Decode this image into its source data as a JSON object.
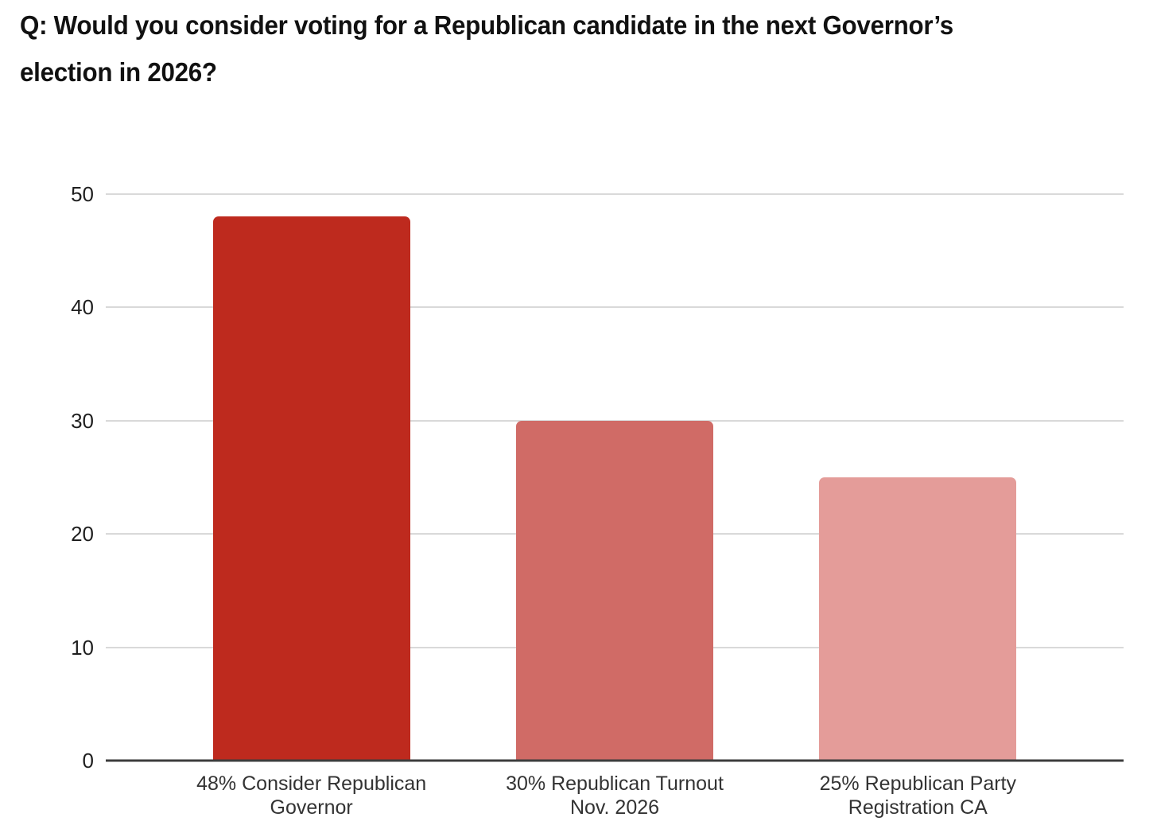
{
  "title": {
    "lines": [
      "Q: Would you consider voting for a Republican candidate in the next Governor’s",
      "election in 2026?"
    ]
  },
  "chart_data": {
    "type": "bar",
    "title": "Q: Would you consider voting for a Republican candidate in the next Governor’s election in 2026?",
    "categories": [
      "48% Consider Republican Governor",
      "30% Republican Turnout Nov. 2026",
      "25% Republican Party Registration CA"
    ],
    "category_label_lines": [
      [
        "48% Consider Republican",
        "Governor"
      ],
      [
        "30% Republican Turnout",
        "Nov. 2026"
      ],
      [
        "25% Republican Party",
        "Registration CA"
      ]
    ],
    "values": [
      48,
      30,
      25
    ],
    "bar_colors": [
      "#be2a1e",
      "#d06b66",
      "#e49c99"
    ],
    "xlabel": "",
    "ylabel": "",
    "ylim": [
      0,
      50
    ],
    "yticks": [
      0,
      10,
      20,
      30,
      40,
      50
    ],
    "grid": true,
    "legend": "none",
    "axis_colors": {
      "gridline": "#d9d9d9",
      "baseline": "#3d3d3d",
      "tick_label": "#1f1f1f",
      "category_label": "#333333"
    }
  }
}
